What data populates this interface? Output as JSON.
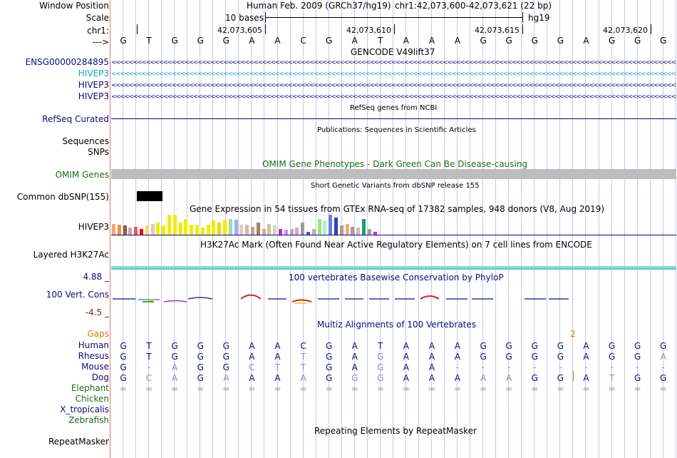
{
  "header": {
    "window_position_label": "Window Position",
    "scale_label": "Scale",
    "chr_label": "chr1:",
    "arrow_label": "--->",
    "assembly": "Human Feb. 2009 (GRCh37/hg19)",
    "position": "chr1:42,073,600-42,073,621 (22 bp)",
    "scale_text": "10 bases",
    "db": "hg19",
    "coords": [
      "42,073,605",
      "42,073,610",
      "42,073,615",
      "42,073,620"
    ]
  },
  "sequence": [
    "G",
    "T",
    "G",
    "G",
    "G",
    "A",
    "A",
    "C",
    "G",
    "A",
    "T",
    "A",
    "A",
    "A",
    "G",
    "G",
    "G",
    "G",
    "A",
    "G",
    "G",
    "G"
  ],
  "tracks": {
    "gencode": {
      "title": "GENCODE V49lift37",
      "items": [
        {
          "label": "ENSG00000284895",
          "color": "#0c0c78"
        },
        {
          "label": "HIVEP3",
          "color": "#1aa3c2"
        },
        {
          "label": "HIVEP3",
          "color": "#0c0c78"
        },
        {
          "label": "HIVEP3",
          "color": "#0c0c78"
        }
      ]
    },
    "refseq": {
      "title": "RefSeq genes from NCBI",
      "label": "RefSeq Curated"
    },
    "publications": {
      "title": "Publications: Sequences in Scientific Articles",
      "label1": "Sequences",
      "label2": "SNPs"
    },
    "omim": {
      "title": "OMIM Gene Phenotypes - Dark Green Can Be Disease-causing",
      "label": "OMIM Genes"
    },
    "dbsnp": {
      "title": "Short Genetic Variants from dbSNP release 155",
      "label": "Common dbSNP(155)"
    },
    "gtex": {
      "title": "Gene Expression in 54 tissues from GTEx RNA-seq of 17382 samples, 948 donors (V8, Aug 2019)",
      "label": "HIVEP3",
      "bars": [
        {
          "color": "#f1a77b",
          "value": 0.55
        },
        {
          "color": "#ef8f46",
          "value": 0.5
        },
        {
          "color": "#8b5e3c",
          "value": 0.45
        },
        {
          "color": "#d6a0b0",
          "value": 0.35
        },
        {
          "color": "#e65c5c",
          "value": 0.4
        },
        {
          "color": "#ff0000",
          "value": 0.3
        },
        {
          "color": "#ffd27f",
          "value": 0.45
        },
        {
          "color": "#f0c3a7",
          "value": 0.55
        },
        {
          "color": "#eeee00",
          "value": 0.6
        },
        {
          "color": "#eeee00",
          "value": 0.45
        },
        {
          "color": "#eeee00",
          "value": 1.0
        },
        {
          "color": "#eeee00",
          "value": 1.0
        },
        {
          "color": "#eeee00",
          "value": 0.6
        },
        {
          "color": "#eeee00",
          "value": 0.8
        },
        {
          "color": "#eeee00",
          "value": 0.5
        },
        {
          "color": "#eeee00",
          "value": 0.5
        },
        {
          "color": "#eeee00",
          "value": 0.35
        },
        {
          "color": "#eeee00",
          "value": 0.5
        },
        {
          "color": "#eeee00",
          "value": 0.7
        },
        {
          "color": "#dddd00",
          "value": 0.6
        },
        {
          "color": "#eeee00",
          "value": 0.75
        },
        {
          "color": "#a6d8a0",
          "value": 0.8
        },
        {
          "color": "#a0b0e8",
          "value": 0.75
        },
        {
          "color": "#e8c8c0",
          "value": 0.5
        },
        {
          "color": "#d8b8b0",
          "value": 0.5
        },
        {
          "color": "#c8a090",
          "value": 0.4
        },
        {
          "color": "#a08060",
          "value": 0.6
        },
        {
          "color": "#c8b098",
          "value": 0.3
        },
        {
          "color": "#d0c0a0",
          "value": 0.55
        },
        {
          "color": "#e0d0b8",
          "value": 0.45
        },
        {
          "color": "#a040c0",
          "value": 0.3
        },
        {
          "color": "#d090e0",
          "value": 0.25
        },
        {
          "color": "#b8a8c8",
          "value": 0.3
        },
        {
          "color": "#e0a0c0",
          "value": 0.35
        },
        {
          "color": "#9a9a9a",
          "value": 0.6
        },
        {
          "color": "#5050d0",
          "value": 0.15
        },
        {
          "color": "#d8a890",
          "value": 0.3
        },
        {
          "color": "#a0e090",
          "value": 0.8
        },
        {
          "color": "#b0f0c0",
          "value": 0.7
        },
        {
          "color": "#6080e0",
          "value": 1.0
        },
        {
          "color": "#3040c0",
          "value": 0.85
        },
        {
          "color": "#c09880",
          "value": 0.45
        },
        {
          "color": "#e0b090",
          "value": 0.55
        },
        {
          "color": "#b09890",
          "value": 0.4
        },
        {
          "color": "#c8c0b0",
          "value": 0.35
        },
        {
          "color": "#20a060",
          "value": 0.8
        },
        {
          "color": "#a0a0a0",
          "value": 0.3
        },
        {
          "color": "#ff00ff",
          "value": 0.15
        }
      ]
    },
    "h3k27ac": {
      "title": "H3K27Ac Mark (Often Found Near Active Regulatory Elements) on 7 cell lines from ENCODE",
      "label": "Layered H3K27Ac"
    },
    "cons": {
      "title": "100 vertebrates Basewise Conservation by PhyloP",
      "label": "100 Vert. Cons",
      "max": "4.88 _",
      "min": "-4.5 _"
    },
    "multiz": {
      "title": "Multiz Alignments of 100 Vertebrates",
      "gaps_label": "Gaps",
      "gap_marker": "2",
      "species": [
        {
          "name": "Human",
          "color": "#0c0c78",
          "bases": [
            "G",
            "T",
            "G",
            "G",
            "G",
            "A",
            "A",
            "C",
            "G",
            "A",
            "T",
            "A",
            "A",
            "A",
            "G",
            "G",
            "G",
            "G",
            "A",
            "G",
            "G",
            "G"
          ]
        },
        {
          "name": "Rhesus",
          "color": "#0c0c78",
          "bases": [
            "G",
            "T",
            "G",
            "G",
            "G",
            "A",
            "A",
            "T",
            "G",
            "A",
            "G",
            "A",
            "A",
            "A",
            "G",
            "G",
            "G",
            "G",
            "A",
            "G",
            "G",
            "A"
          ]
        },
        {
          "name": "Mouse",
          "color": "#0c0c78",
          "bases": [
            "G",
            "-",
            "A",
            "G",
            "G",
            "C",
            "T",
            "T",
            "G",
            "A",
            "G",
            "A",
            "A",
            "-",
            "-",
            "-",
            "-",
            "-",
            "-",
            "-",
            "-",
            "-"
          ]
        },
        {
          "name": "Dog",
          "color": "#0c0c78",
          "bases": [
            "G",
            "C",
            "A",
            "G",
            "A",
            "A",
            "A",
            "A",
            "G",
            "G",
            "G",
            "A",
            "A",
            "A",
            "A",
            "A",
            "G",
            "G",
            "A",
            "T",
            "G",
            "G"
          ]
        },
        {
          "name": "Elephant",
          "color": "#1e6b1e",
          "bases": [
            "=",
            "=",
            "=",
            "=",
            "=",
            "=",
            "=",
            "=",
            "=",
            "=",
            "=",
            "=",
            "=",
            "=",
            "=",
            "=",
            "=",
            "=",
            "=",
            "=",
            "=",
            "="
          ]
        },
        {
          "name": "Chicken",
          "color": "#1e6b1e",
          "bases": []
        },
        {
          "name": "X_tropicalis",
          "color": "#0c0c78",
          "bases": []
        },
        {
          "name": "Zebrafish",
          "color": "#1e6b1e",
          "bases": []
        }
      ]
    },
    "repeatmasker": {
      "title": "Repeating Elements by RepeatMasker",
      "label": "RepeatMasker"
    }
  }
}
